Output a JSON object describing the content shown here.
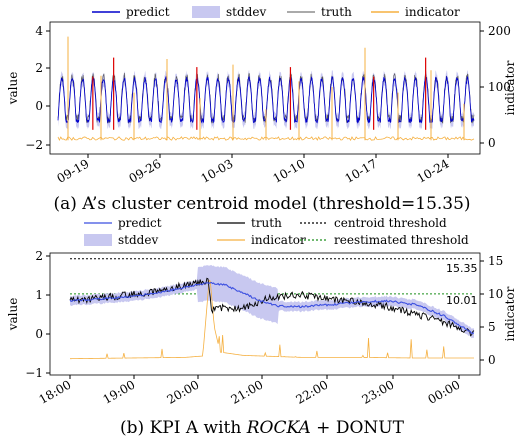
{
  "chart_data": [
    {
      "type": "line",
      "caption": "(a) A’s cluster centroid model (threshold=15.35)",
      "ylabel": "value",
      "y2label": "indicator",
      "ylim": [
        -2,
        4
      ],
      "y2lim": [
        -5,
        205
      ],
      "yticks": [
        "−2",
        "0",
        "2",
        "4"
      ],
      "y2ticks": [
        "0",
        "100",
        "200"
      ],
      "xticks": [
        "09-19",
        "09-26",
        "10-03",
        "10-10",
        "10-17",
        "10-24"
      ],
      "legend": [
        "predict",
        "stddev",
        "truth",
        "indicator"
      ],
      "colors": {
        "predict": "#0000cc",
        "stddev": "#c8c8f0",
        "truth": "#555555",
        "indicator": "#f5b041",
        "anomaly": "#dd0000"
      },
      "series": [
        {
          "name": "predict",
          "pattern": "daily-cycle",
          "low": -0.7,
          "high": 1.5,
          "cycles": 40
        },
        {
          "name": "truth",
          "pattern": "daily-cycle",
          "low": -0.8,
          "high": 1.7,
          "cycles": 40
        },
        {
          "name": "indicator",
          "baseline": 5,
          "spikes": [
            190,
            120,
            90,
            150,
            80,
            140,
            60,
            110,
            100,
            170,
            90,
            130,
            70
          ]
        }
      ],
      "anomaly_spikes": [
        3,
        5,
        13,
        22,
        30,
        35
      ]
    },
    {
      "type": "line",
      "caption_prefix": "(b) KPI A with ",
      "caption_italic": "ROCKA",
      "caption_suffix": " + DONUT",
      "ylabel": "value",
      "y2label": "indicator",
      "ylim": [
        -1,
        2
      ],
      "y2lim": [
        -1.8,
        16.5
      ],
      "yticks": [
        "−1",
        "0",
        "1",
        "2"
      ],
      "y2ticks": [
        "0",
        "5",
        "10",
        "15"
      ],
      "xticks": [
        "18:00",
        "19:00",
        "20:00",
        "21:00",
        "22:00",
        "23:00",
        "00:00"
      ],
      "legend": [
        "predict",
        "truth",
        "centroid threshold",
        "stddev",
        "indicator",
        "reestimated threshold"
      ],
      "annotations": [
        "15.35",
        "10.01"
      ],
      "thresholds": {
        "centroid": 15.35,
        "reestimated": 10.01
      },
      "colors": {
        "predict": "#3b4fe0",
        "stddev": "#c8c8f0",
        "truth": "#000000",
        "indicator": "#f5b041",
        "centroid": "#000000",
        "reestimated": "#1a8f1a"
      },
      "predict_points": [
        [
          0,
          0.85
        ],
        [
          0.5,
          0.9
        ],
        [
          1,
          0.95
        ],
        [
          1.5,
          1.05
        ],
        [
          2,
          1.2
        ],
        [
          2.4,
          1.32
        ],
        [
          2.7,
          1.25
        ],
        [
          3,
          1.05
        ],
        [
          3.3,
          0.85
        ],
        [
          3.6,
          0.72
        ],
        [
          4,
          0.7
        ],
        [
          4.5,
          0.75
        ],
        [
          5,
          0.82
        ],
        [
          5.5,
          0.85
        ],
        [
          6,
          0.75
        ],
        [
          6.5,
          0.45
        ],
        [
          7,
          0.0
        ]
      ],
      "truth_points": [
        [
          0,
          0.85
        ],
        [
          0.5,
          0.92
        ],
        [
          1,
          1.0
        ],
        [
          1.5,
          1.1
        ],
        [
          2,
          1.25
        ],
        [
          2.4,
          1.35
        ],
        [
          2.45,
          0.62
        ],
        [
          2.7,
          0.68
        ],
        [
          3,
          0.65
        ],
        [
          3.5,
          0.95
        ],
        [
          4,
          1.0
        ],
        [
          4.5,
          0.9
        ],
        [
          5,
          0.82
        ],
        [
          5.5,
          0.7
        ],
        [
          6,
          0.5
        ],
        [
          6.5,
          0.3
        ],
        [
          7,
          0.0
        ]
      ],
      "indicator_points": [
        [
          0,
          0.2
        ],
        [
          1,
          0.3
        ],
        [
          2,
          0.4
        ],
        [
          2.3,
          0.6
        ],
        [
          2.42,
          13
        ],
        [
          2.5,
          5
        ],
        [
          2.6,
          1.2
        ],
        [
          3,
          0.7
        ],
        [
          4,
          0.4
        ],
        [
          5,
          0.4
        ],
        [
          6,
          0.3
        ],
        [
          7,
          0.3
        ]
      ]
    }
  ]
}
